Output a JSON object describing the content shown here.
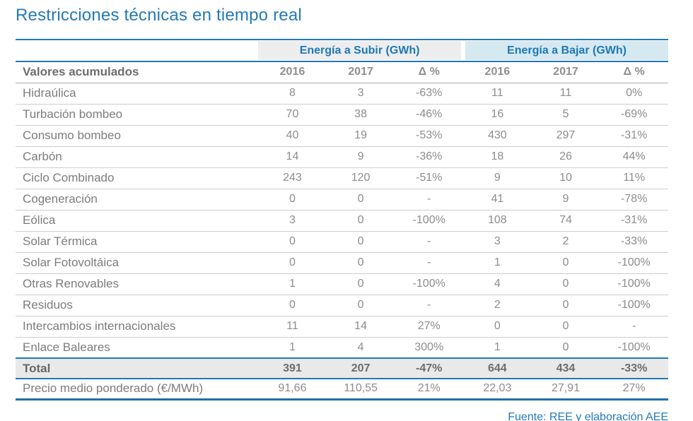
{
  "title": "Restricciones técnicas en tiempo real",
  "colors": {
    "accent_blue": "#2379b9",
    "rule_blue": "#2478b8",
    "heavy_rule_blue": "#1f6fa9",
    "band_subir_bg": "#ededed",
    "band_bajar_bg": "#d6e9f1",
    "total_row_bg": "#e9e9e9",
    "label_gray": "#7c7c7c",
    "value_gray": "#8c8c8c",
    "separator_gray": "#cdcdcd"
  },
  "chart_data": {
    "type": "table",
    "title": "Restricciones técnicas en tiempo real",
    "group_headers": [
      "Energía a Subir (GWh)",
      "Energía a Bajar (GWh)"
    ],
    "columns": [
      "Valores acumulados",
      "2016",
      "2017",
      "Δ %",
      "2016",
      "2017",
      "Δ %"
    ],
    "rows": [
      {
        "label": "Hidraúlica",
        "values": [
          "8",
          "3",
          "-63%",
          "11",
          "11",
          "0%"
        ]
      },
      {
        "label": "Turbación bombeo",
        "values": [
          "70",
          "38",
          "-46%",
          "16",
          "5",
          "-69%"
        ]
      },
      {
        "label": "Consumo bombeo",
        "values": [
          "40",
          "19",
          "-53%",
          "430",
          "297",
          "-31%"
        ]
      },
      {
        "label": "Carbón",
        "values": [
          "14",
          "9",
          "-36%",
          "18",
          "26",
          "44%"
        ]
      },
      {
        "label": "Ciclo Combinado",
        "values": [
          "243",
          "120",
          "-51%",
          "9",
          "10",
          "11%"
        ]
      },
      {
        "label": "Cogeneración",
        "values": [
          "0",
          "0",
          "-",
          "41",
          "9",
          "-78%"
        ]
      },
      {
        "label": "Eólica",
        "values": [
          "3",
          "0",
          "-100%",
          "108",
          "74",
          "-31%"
        ]
      },
      {
        "label": "Solar Térmica",
        "values": [
          "0",
          "0",
          "-",
          "3",
          "2",
          "-33%"
        ]
      },
      {
        "label": "Solar Fotovoltáica",
        "values": [
          "0",
          "0",
          "-",
          "1",
          "0",
          "-100%"
        ]
      },
      {
        "label": "Otras Renovables",
        "values": [
          "1",
          "0",
          "-100%",
          "4",
          "0",
          "-100%"
        ]
      },
      {
        "label": "Residuos",
        "values": [
          "0",
          "0",
          "-",
          "2",
          "0",
          "-100%"
        ]
      },
      {
        "label": "Intercambios internacionales",
        "values": [
          "11",
          "14",
          "27%",
          "0",
          "0",
          "-"
        ]
      },
      {
        "label": "Enlace Baleares",
        "values": [
          "1",
          "4",
          "300%",
          "1",
          "0",
          "-100%"
        ]
      }
    ],
    "total": {
      "label": "Total",
      "values": [
        "391",
        "207",
        "-47%",
        "644",
        "434",
        "-33%"
      ]
    },
    "price": {
      "label": "Precio medio ponderado (€/MWh)",
      "values": [
        "91,66",
        "110,55",
        "21%",
        "22,03",
        "27,91",
        "27%"
      ]
    },
    "source": "Fuente: REE y elaboración AEE"
  }
}
